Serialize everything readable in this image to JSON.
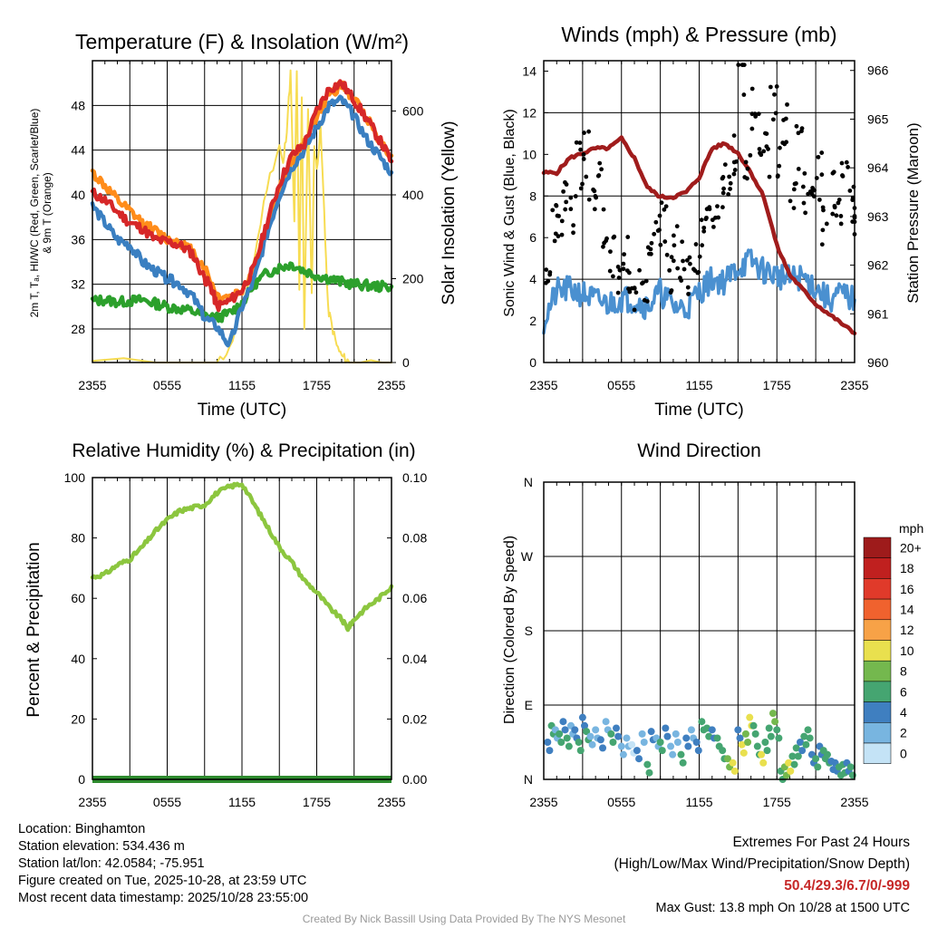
{
  "panels": {
    "temperature": {
      "title": "Temperature (F) & Insolation (W/m²)",
      "ylabel_left": [
        "2m T, Tₐ, HI/WC (Red, Green, Scarlet/Blue)",
        "& 9m T (Orange)"
      ],
      "ylabel_right": "Solar Insolation (Yellow)",
      "xlabel": "Time (UTC)"
    },
    "winds": {
      "title": "Winds (mph) & Pressure (mb)",
      "ylabel_left": "Sonic Wind & Gust (Blue, Black)",
      "ylabel_right": "Station Pressure (Maroon)",
      "xlabel": "Time (UTC)"
    },
    "humidity": {
      "title": "Relative Humidity (%) & Precipitation (in)",
      "ylabel_left": "Percent & Precipitation"
    },
    "direction": {
      "title": "Wind Direction",
      "ylabel_left": "Direction (Colored By Speed)",
      "legend_title": "mph",
      "legend_labels": [
        "20+",
        "18",
        "16",
        "14",
        "12",
        "10",
        "8",
        "6",
        "4",
        "2",
        "0"
      ],
      "legend_colors": [
        "#9e1b1b",
        "#c0201f",
        "#e03a2a",
        "#f0622e",
        "#f7a247",
        "#e9e04e",
        "#74b84e",
        "#45a571",
        "#3f7fc0",
        "#78b5e0",
        "#c4e3f6"
      ]
    }
  },
  "chart_data": [
    {
      "type": "line",
      "title": "Temperature (F) & Insolation (W/m²)",
      "xlabel": "Time (UTC)",
      "x_ticks": [
        "2355",
        "0555",
        "1155",
        "1755",
        "2355"
      ],
      "xlim": [
        0,
        24
      ],
      "ylim": [
        25,
        52
      ],
      "y_ticks": [
        "28",
        "32",
        "36",
        "40",
        "44",
        "48"
      ],
      "y2lim": [
        0,
        720
      ],
      "y2_ticks": [
        "0",
        "200",
        "400",
        "600"
      ],
      "series": [
        {
          "name": "2m T",
          "color": "#d62728",
          "axis": "left",
          "x": [
            0,
            1,
            2,
            3,
            4,
            5,
            6,
            7,
            8,
            9,
            9.5,
            10,
            11,
            12,
            13,
            14,
            15,
            16,
            17,
            18,
            19,
            20,
            21,
            22,
            23,
            24
          ],
          "y": [
            40.2,
            39.5,
            38.5,
            37.5,
            37.0,
            36.0,
            35.8,
            35.5,
            34.8,
            32.5,
            31.8,
            30.0,
            30.5,
            31.5,
            33.5,
            37.5,
            41.0,
            43.5,
            44.5,
            47.5,
            49.5,
            50.0,
            48.5,
            46.8,
            45.0,
            43.0
          ]
        },
        {
          "name": "9m T",
          "color": "#ff8c1a",
          "axis": "left",
          "x": [
            0,
            1,
            2,
            3,
            4,
            5,
            6,
            7,
            8,
            9,
            10,
            11,
            12,
            13,
            14,
            15,
            16,
            17,
            18,
            19,
            20,
            21,
            22,
            23,
            24
          ],
          "y": [
            42.0,
            40.8,
            39.5,
            38.5,
            37.5,
            36.8,
            36.0,
            35.8,
            35.0,
            33.5,
            31.0,
            30.8,
            31.5,
            33.5,
            37.0,
            40.5,
            43.0,
            44.5,
            47.0,
            49.0,
            49.8,
            48.5,
            47.0,
            45.0,
            43.5
          ]
        },
        {
          "name": "Td",
          "color": "#2ca02c",
          "axis": "left",
          "x": [
            0,
            1,
            2,
            3,
            4,
            5,
            6,
            7,
            8,
            9,
            10,
            11,
            12,
            13,
            14,
            15,
            16,
            17,
            18,
            19,
            20,
            21,
            22,
            23,
            24
          ],
          "y": [
            30.5,
            30.6,
            30.4,
            30.5,
            30.6,
            30.3,
            30.0,
            29.8,
            29.6,
            29.2,
            29.0,
            29.4,
            30.3,
            32.0,
            33.0,
            33.5,
            33.8,
            33.2,
            32.8,
            32.5,
            32.2,
            32.0,
            31.9,
            31.8,
            31.8
          ]
        },
        {
          "name": "HI/WC",
          "color": "#3a7fc1",
          "axis": "left",
          "x": [
            0,
            1,
            2,
            3,
            4,
            5,
            6,
            7,
            8,
            9,
            10,
            11,
            12,
            13,
            14,
            15,
            16,
            17,
            18,
            19,
            20,
            21,
            22,
            23,
            24
          ],
          "y": [
            39.0,
            37.5,
            36.0,
            35.5,
            34.0,
            33.2,
            32.5,
            32.0,
            31.0,
            29.0,
            28.2,
            26.5,
            30.0,
            32.5,
            36.5,
            40.0,
            42.5,
            44.0,
            46.0,
            48.0,
            48.5,
            47.0,
            45.0,
            43.5,
            42.0
          ]
        },
        {
          "name": "Solar Insolation",
          "color": "#f7dc52",
          "axis": "right",
          "x": [
            0,
            10,
            11,
            12,
            13,
            14,
            15,
            15.3,
            15.6,
            15.9,
            16.2,
            16.4,
            16.6,
            16.8,
            17.0,
            17.3,
            17.6,
            17.8,
            18.0,
            18.3,
            18.6,
            18.9,
            19.2,
            19.6,
            20.0,
            20.4,
            20.7,
            24
          ],
          "y": [
            0,
            0,
            30,
            130,
            250,
            420,
            520,
            470,
            560,
            690,
            330,
            700,
            170,
            640,
            80,
            600,
            160,
            520,
            460,
            560,
            360,
            130,
            90,
            40,
            15,
            5,
            0,
            0
          ]
        }
      ]
    },
    {
      "type": "line",
      "title": "Winds (mph) & Pressure (mb)",
      "xlabel": "Time (UTC)",
      "x_ticks": [
        "2355",
        "0555",
        "1155",
        "1755",
        "2355"
      ],
      "xlim": [
        0,
        24
      ],
      "ylim": [
        0,
        14.5
      ],
      "y_ticks": [
        "0",
        "2",
        "4",
        "6",
        "8",
        "10",
        "12",
        "14"
      ],
      "y2lim": [
        960,
        966.2
      ],
      "y2_ticks": [
        "960",
        "961",
        "962",
        "963",
        "964",
        "965",
        "966"
      ],
      "series": [
        {
          "name": "Sonic Wind",
          "color": "#4a90d0",
          "axis": "left",
          "x": [
            0,
            1,
            2,
            3,
            4,
            5,
            6,
            7,
            8,
            9,
            10,
            11,
            12,
            13,
            14,
            15,
            16,
            17,
            18,
            19,
            20,
            21,
            22,
            23,
            24
          ],
          "y": [
            2.0,
            3.4,
            3.5,
            3.3,
            3.0,
            2.8,
            3.1,
            3.0,
            2.7,
            3.4,
            2.7,
            2.6,
            3.4,
            4.0,
            3.9,
            4.6,
            4.9,
            4.4,
            4.2,
            4.0,
            4.1,
            3.6,
            3.0,
            3.3,
            3.0
          ]
        },
        {
          "name": "Station Pressure",
          "color": "#a01c1c",
          "axis": "right",
          "x": [
            0,
            1,
            2,
            3,
            4,
            5,
            6,
            7,
            8,
            9,
            10,
            11,
            12,
            13,
            14,
            15,
            16,
            17,
            18,
            19,
            20,
            21,
            22,
            23,
            24
          ],
          "y": [
            963.9,
            963.9,
            964.2,
            964.3,
            964.4,
            964.4,
            964.6,
            964.2,
            963.6,
            963.4,
            963.4,
            963.5,
            963.8,
            964.4,
            964.5,
            964.3,
            963.9,
            963.4,
            962.4,
            961.8,
            961.5,
            961.2,
            961.0,
            960.8,
            960.6
          ]
        }
      ],
      "gust_series": {
        "name": "Gust",
        "color": "#000000",
        "x": [
          0,
          0.5,
          1,
          1.5,
          2,
          2.5,
          3,
          3.5,
          4,
          4.5,
          5,
          5.5,
          6,
          6.5,
          7,
          7.5,
          8,
          8.5,
          9,
          9.5,
          10,
          10.5,
          11,
          11.5,
          12,
          12.5,
          13,
          13.5,
          14,
          14.5,
          15,
          15.5,
          16,
          16.5,
          17,
          17.5,
          18,
          18.5,
          19,
          19.5,
          20,
          20.5,
          21,
          21.5,
          22,
          22.5,
          23,
          23.5,
          24
        ],
        "y": [
          4.5,
          7.0,
          6.5,
          8.5,
          7.0,
          9.5,
          10.0,
          8.0,
          8.5,
          6.5,
          5.0,
          4.0,
          5.5,
          4.5,
          3.5,
          4.0,
          5.0,
          6.0,
          6.5,
          4.5,
          5.5,
          5.0,
          4.0,
          5.5,
          6.0,
          6.5,
          7.5,
          8.5,
          9.0,
          10.0,
          13.8,
          9.5,
          12.0,
          11.0,
          10.0,
          12.5,
          9.5,
          11.5,
          8.5,
          10.5,
          8.0,
          7.5,
          9.0,
          6.5,
          8.0,
          7.0,
          8.5,
          7.5,
          7.0
        ]
      }
    },
    {
      "type": "line",
      "title": "Relative Humidity (%) & Precipitation (in)",
      "x_ticks": [
        "2355",
        "0555",
        "1155",
        "1755",
        "2355"
      ],
      "xlim": [
        0,
        24
      ],
      "ylim": [
        0,
        100
      ],
      "y_ticks": [
        "0",
        "20",
        "40",
        "60",
        "80",
        "100"
      ],
      "y2lim": [
        0,
        0.1
      ],
      "y2_ticks": [
        "0.00",
        "0.02",
        "0.04",
        "0.06",
        "0.08",
        "0.10"
      ],
      "series": [
        {
          "name": "Relative Humidity",
          "color": "#8cc63f",
          "axis": "left",
          "x": [
            0,
            1,
            2,
            3,
            4,
            5,
            6,
            7,
            8,
            9,
            10,
            11,
            12,
            13,
            14,
            15,
            16,
            17,
            18,
            19,
            20,
            20.5,
            21,
            22,
            23,
            24
          ],
          "y": [
            67,
            68,
            71,
            73,
            77,
            82,
            86,
            89,
            90,
            91,
            95,
            97,
            98,
            91,
            84,
            77,
            72,
            66,
            62,
            57,
            53,
            50,
            53,
            57,
            60,
            64
          ]
        },
        {
          "name": "Precipitation",
          "color": "#2e8b2e",
          "axis": "right",
          "x": [
            0,
            24
          ],
          "y": [
            0.0,
            0.0
          ]
        }
      ]
    },
    {
      "type": "scatter",
      "title": "Wind Direction",
      "x_ticks": [
        "2355",
        "0555",
        "1155",
        "1755",
        "2355"
      ],
      "xlim": [
        0,
        24
      ],
      "ylim": [
        0,
        360
      ],
      "y_ticks": [
        "N",
        "E",
        "S",
        "W",
        "N"
      ],
      "x": [
        0.3,
        0.6,
        0.9,
        1.2,
        1.5,
        1.8,
        2.1,
        2.4,
        2.7,
        3.0,
        3.3,
        3.6,
        4.0,
        4.4,
        4.8,
        5.2,
        5.6,
        6.0,
        6.4,
        6.8,
        7.2,
        7.6,
        8.0,
        8.3,
        8.7,
        9.0,
        9.4,
        9.8,
        10.2,
        10.6,
        11.0,
        11.4,
        11.8,
        12.2,
        12.6,
        13.0,
        13.4,
        13.8,
        14.2,
        14.6,
        15.0,
        15.3,
        15.6,
        15.9,
        16.2,
        16.5,
        16.8,
        17.1,
        17.4,
        17.7,
        18.0,
        18.3,
        18.6,
        18.9,
        19.2,
        19.5,
        19.8,
        20.1,
        20.4,
        20.7,
        21.0,
        21.3,
        21.6,
        21.9,
        22.2,
        22.5,
        22.8,
        23.1,
        23.4,
        23.7
      ],
      "y": [
        45,
        65,
        60,
        55,
        70,
        50,
        65,
        60,
        45,
        75,
        58,
        52,
        60,
        48,
        70,
        55,
        62,
        40,
        50,
        42,
        35,
        55,
        18,
        58,
        50,
        45,
        62,
        40,
        55,
        30,
        50,
        60,
        45,
        70,
        62,
        60,
        50,
        35,
        25,
        20,
        60,
        42,
        55,
        75,
        65,
        40,
        30,
        45,
        62,
        80,
        60,
        10,
        15,
        20,
        28,
        38,
        45,
        52,
        60,
        30,
        25,
        40,
        35,
        30,
        22,
        20,
        15,
        18,
        20,
        15
      ],
      "speeds": [
        3,
        4,
        2,
        4,
        3,
        4,
        2,
        3,
        4,
        3,
        4,
        2,
        2,
        3,
        2,
        4,
        3,
        2,
        2,
        1,
        3,
        2,
        4,
        3,
        2,
        4,
        3,
        2,
        2,
        4,
        3,
        2,
        3,
        4,
        4,
        3,
        4,
        4,
        5,
        6,
        3,
        6,
        5,
        6,
        4,
        4,
        6,
        4,
        4,
        5,
        4,
        4,
        5,
        6,
        4,
        4,
        3,
        4,
        4,
        3,
        4,
        3,
        4,
        4,
        3,
        3,
        4,
        4,
        3,
        4
      ]
    }
  ],
  "meta": {
    "location": "Location: Binghamton",
    "elevation": "Station elevation: 534.436 m",
    "latlon": "Station lat/lon: 42.0584; -75.951",
    "created": "Figure created on Tue, 2025-10-28, at 23:59 UTC",
    "recent": "Most recent data timestamp: 2025/10/28 23:55:00"
  },
  "extremes": {
    "title": "Extremes For Past 24 Hours",
    "subtitle": "(High/Low/Max Wind/Precipitation/Snow Depth)",
    "values": "50.4/29.3/6.7/0/-999",
    "gust": "Max Gust: 13.8 mph On 10/28 at 1500 UTC"
  },
  "credit": "Created By Nick Bassill Using Data Provided By The NYS Mesonet",
  "colors": {
    "temp": "#d62728",
    "temp9m": "#ff8c1a",
    "dewpoint": "#2ca02c",
    "windchill": "#3a7fc1",
    "solar": "#f7dc52",
    "wind": "#4a90d0",
    "gust": "#000000",
    "pressure": "#a01c1c",
    "rh": "#8cc63f",
    "precip": "#2e8b2e",
    "extremes": "#c62828"
  }
}
